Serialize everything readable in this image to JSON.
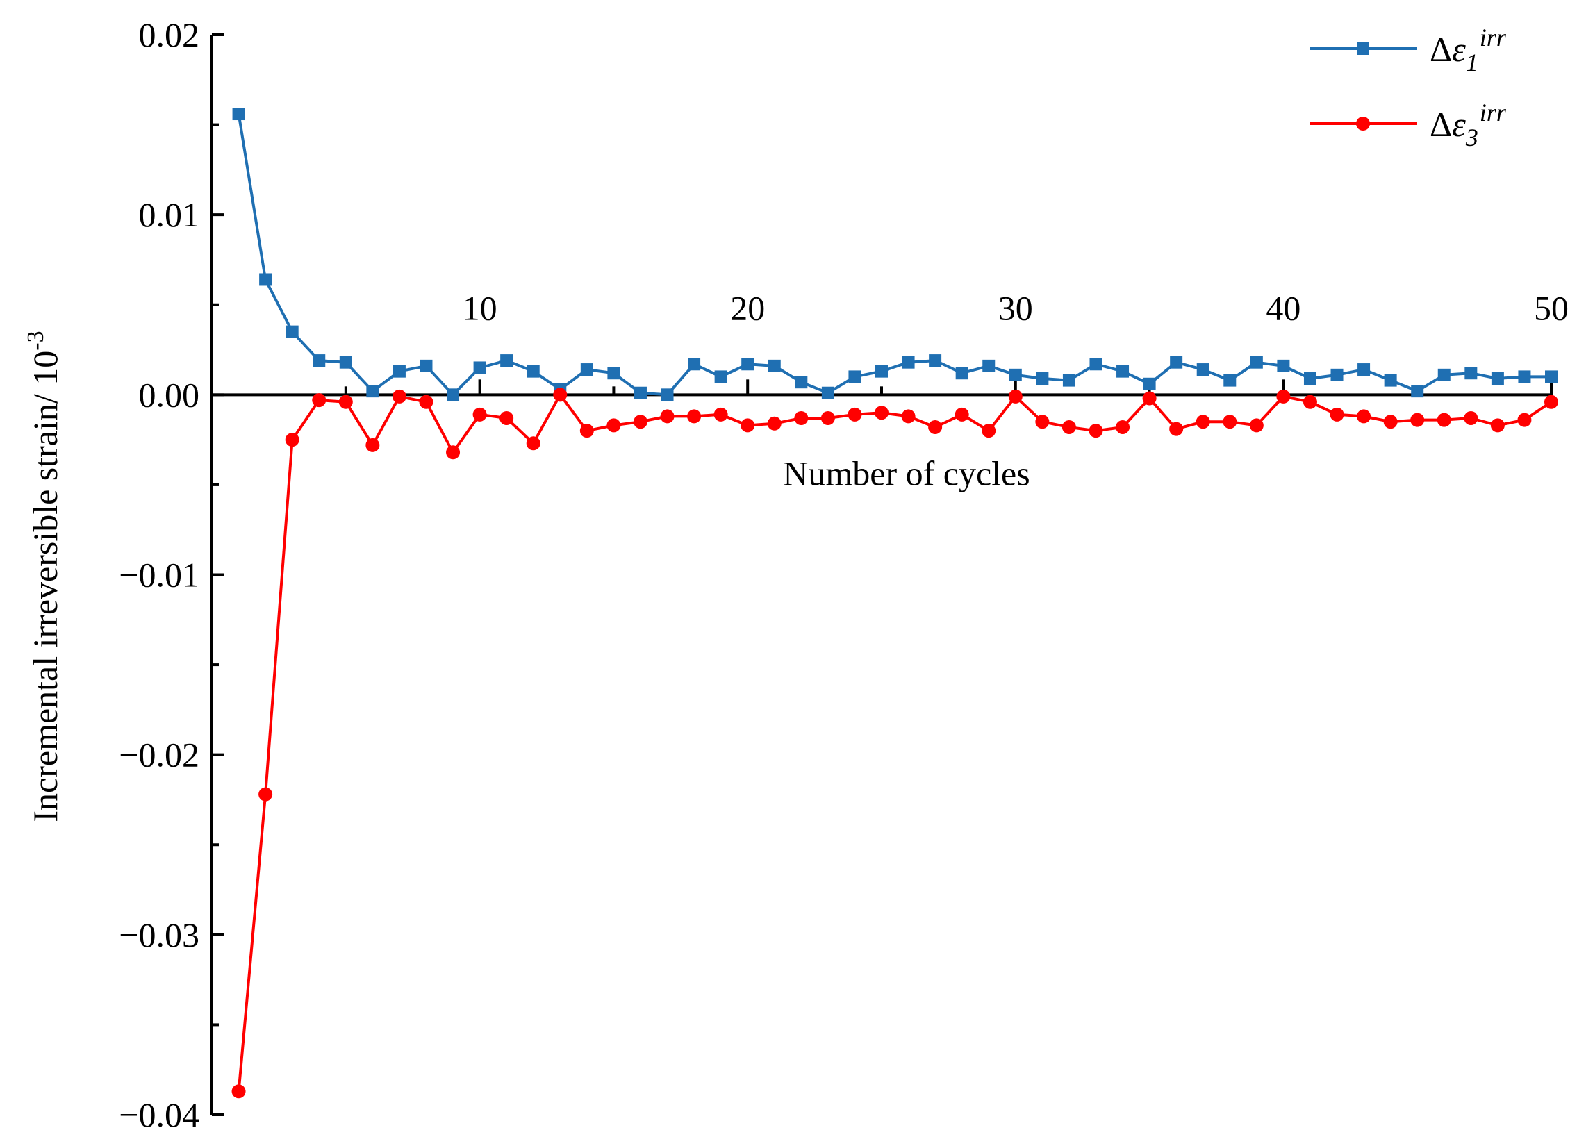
{
  "chart_data": {
    "type": "line",
    "title": "",
    "xlabel": "Number of cycles",
    "ylabel": "Incremental irreversible strain/ 10",
    "ylabel_sup": "-3",
    "xlim": [
      0,
      50
    ],
    "ylim": [
      -0.04,
      0.02
    ],
    "x_ticks": [
      10,
      20,
      30,
      40,
      50
    ],
    "x_tick_labels": [
      "10",
      "20",
      "30",
      "40",
      "50"
    ],
    "y_ticks": [
      0.02,
      0.01,
      0.0,
      -0.01,
      -0.02,
      -0.03,
      -0.04
    ],
    "y_tick_labels": [
      "0.02",
      "0.01",
      "0.00",
      "−0.01",
      "−0.02",
      "−0.03",
      "−0.04"
    ],
    "grid": false,
    "legend_position": "top-right",
    "x": [
      1,
      2,
      3,
      4,
      5,
      6,
      7,
      8,
      9,
      10,
      11,
      12,
      13,
      14,
      15,
      16,
      17,
      18,
      19,
      20,
      21,
      22,
      23,
      24,
      25,
      26,
      27,
      28,
      29,
      30,
      31,
      32,
      33,
      34,
      35,
      36,
      37,
      38,
      39,
      40,
      41,
      42,
      43,
      44,
      45,
      46,
      47,
      48,
      49,
      50
    ],
    "series": [
      {
        "name_symbol": "Δ",
        "name_var": "ε",
        "name_sub": "1",
        "name_sup": "irr",
        "color": "#1f6fb2",
        "marker": "square",
        "values": [
          0.0156,
          0.0064,
          0.0035,
          0.0019,
          0.0018,
          0.0002,
          0.0013,
          0.0016,
          0.0,
          0.0015,
          0.0019,
          0.0013,
          0.0003,
          0.0014,
          0.0012,
          0.0001,
          0.0,
          0.0017,
          0.001,
          0.0017,
          0.0016,
          0.0007,
          0.0001,
          0.001,
          0.0013,
          0.0018,
          0.0019,
          0.0012,
          0.0016,
          0.0011,
          0.0009,
          0.0008,
          0.0017,
          0.0013,
          0.0006,
          0.0018,
          0.0014,
          0.0008,
          0.0018,
          0.0016,
          0.0009,
          0.0011,
          0.0014,
          0.0008,
          0.0002,
          0.0011,
          0.0012,
          0.0009,
          0.001,
          0.001
        ]
      },
      {
        "name_symbol": "Δ",
        "name_var": "ε",
        "name_sub": "3",
        "name_sup": "irr",
        "color": "#ff0000",
        "marker": "circle",
        "values": [
          -0.0387,
          -0.0222,
          -0.0025,
          -0.0003,
          -0.0004,
          -0.0028,
          -0.0001,
          -0.0004,
          -0.0032,
          -0.0011,
          -0.0013,
          -0.0027,
          0.0,
          -0.002,
          -0.0017,
          -0.0015,
          -0.0012,
          -0.0012,
          -0.0011,
          -0.0017,
          -0.0016,
          -0.0013,
          -0.0013,
          -0.0011,
          -0.001,
          -0.0012,
          -0.0018,
          -0.0011,
          -0.002,
          -0.0001,
          -0.0015,
          -0.0018,
          -0.002,
          -0.0018,
          -0.0002,
          -0.0019,
          -0.0015,
          -0.0015,
          -0.0017,
          -0.0001,
          -0.0004,
          -0.0011,
          -0.0012,
          -0.0015,
          -0.0014,
          -0.0014,
          -0.0013,
          -0.0017,
          -0.0014,
          -0.0004
        ]
      }
    ]
  }
}
